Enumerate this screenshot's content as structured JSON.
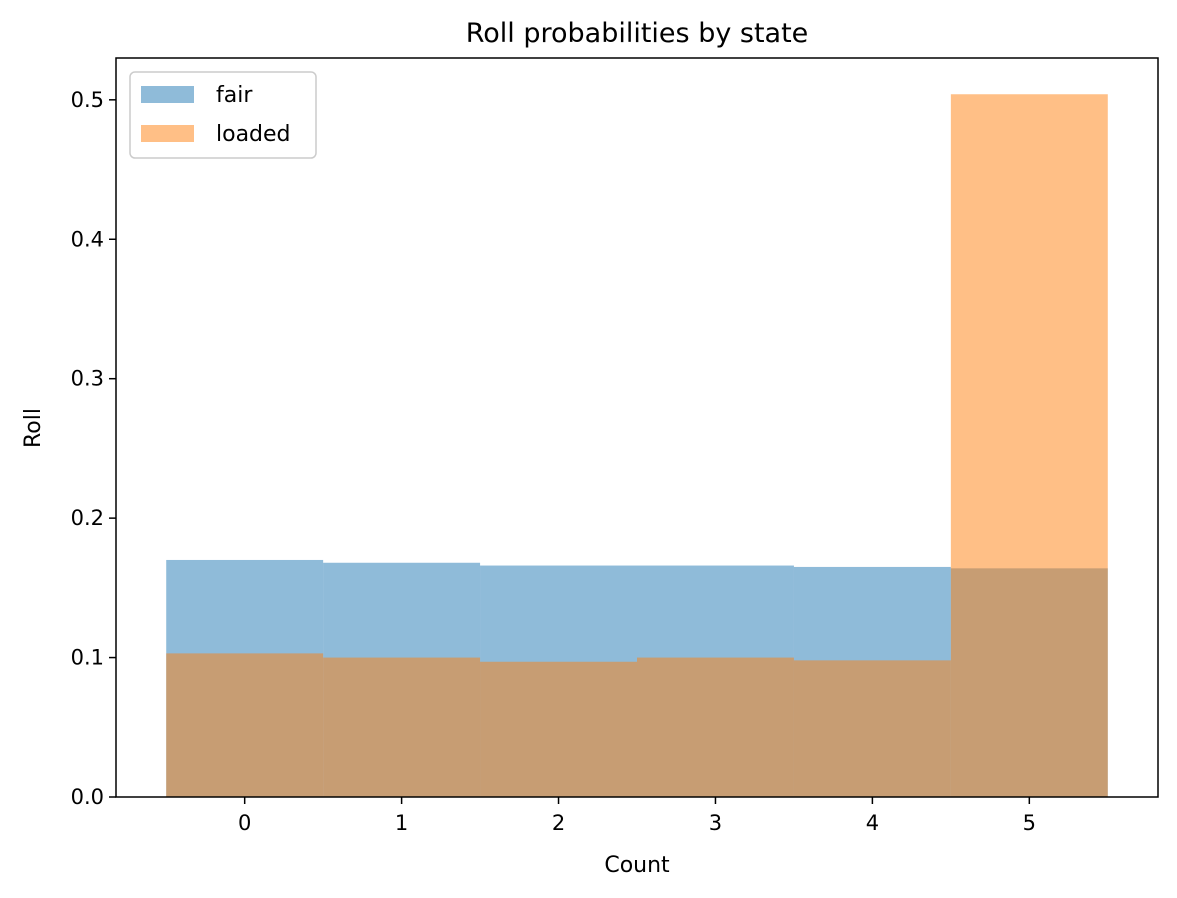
{
  "chart_data": {
    "type": "bar",
    "title": "Roll probabilities by state",
    "xlabel": "Count",
    "ylabel": "Roll",
    "categories": [
      "0",
      "1",
      "2",
      "3",
      "4",
      "5"
    ],
    "x": [
      0,
      1,
      2,
      3,
      4,
      5
    ],
    "series": [
      {
        "name": "fair",
        "color": "#1f77b4",
        "opacity": 0.5,
        "values": [
          0.17,
          0.168,
          0.166,
          0.166,
          0.165,
          0.164
        ]
      },
      {
        "name": "loaded",
        "color": "#ff7f0e",
        "opacity": 0.5,
        "values": [
          0.103,
          0.1,
          0.097,
          0.1,
          0.098,
          0.504
        ]
      }
    ],
    "xlim": [
      -0.82,
      5.82
    ],
    "ylim": [
      0,
      0.53
    ],
    "xticks": [
      0,
      1,
      2,
      3,
      4,
      5
    ],
    "yticks": [
      0.0,
      0.1,
      0.2,
      0.3,
      0.4,
      0.5
    ],
    "ytick_labels": [
      "0.0",
      "0.1",
      "0.2",
      "0.3",
      "0.4",
      "0.5"
    ],
    "grid": false,
    "legend_position": "top-left"
  }
}
